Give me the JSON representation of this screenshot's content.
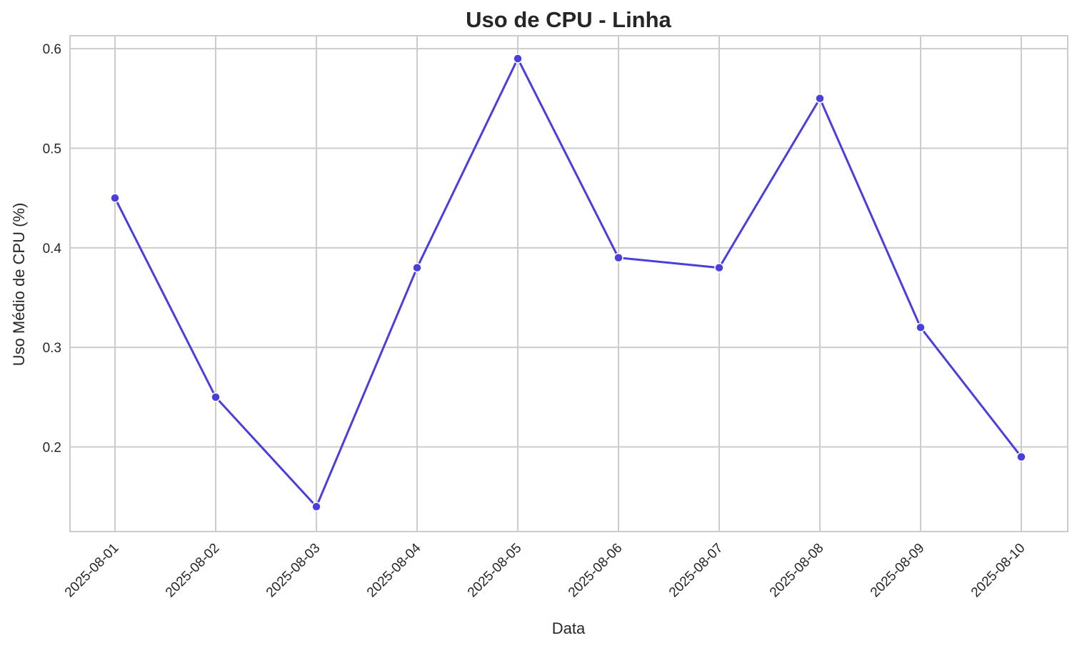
{
  "chart_data": {
    "type": "line",
    "title": "Uso de CPU - Linha",
    "xlabel": "Data",
    "ylabel": "Uso Médio de CPU (%)",
    "x": [
      "2025-08-01",
      "2025-08-02",
      "2025-08-03",
      "2025-08-04",
      "2025-08-05",
      "2025-08-06",
      "2025-08-07",
      "2025-08-08",
      "2025-08-09",
      "2025-08-10"
    ],
    "series": [
      {
        "values": [
          0.45,
          0.25,
          0.14,
          0.38,
          0.59,
          0.39,
          0.38,
          0.55,
          0.32,
          0.19
        ]
      }
    ],
    "yticks": [
      "0.2",
      "0.3",
      "0.4",
      "0.5",
      "0.6"
    ],
    "ylim": [
      0.115,
      0.613
    ],
    "grid": true,
    "legend": "none",
    "colors": {
      "line": "#4a3fdc",
      "grid": "#cccccc",
      "axis_frame": "#cccccc",
      "text": "#262626"
    }
  }
}
